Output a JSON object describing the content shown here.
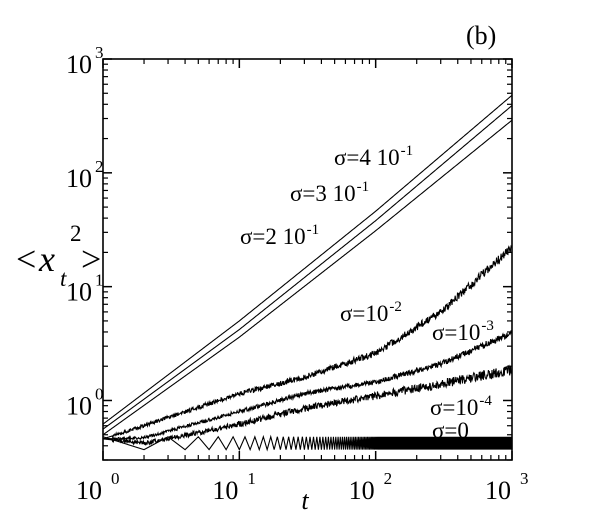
{
  "chart_data": {
    "type": "line",
    "panel_label": "(b)",
    "xlabel": "t",
    "ylabel": "<x_t^2>",
    "x_scale": "log",
    "y_scale": "log",
    "xlim": [
      1,
      1000
    ],
    "ylim": [
      0.3,
      1000
    ],
    "grid": false,
    "x_ticks": [
      {
        "value": 1,
        "base": "10",
        "exp": "0"
      },
      {
        "value": 10,
        "base": "10",
        "exp": "1"
      },
      {
        "value": 100,
        "base": "10",
        "exp": "2"
      },
      {
        "value": 1000,
        "base": "10",
        "exp": "3"
      }
    ],
    "y_ticks": [
      {
        "value": 1,
        "base": "10",
        "exp": "0"
      },
      {
        "value": 10,
        "base": "10",
        "exp": "1"
      },
      {
        "value": 100,
        "base": "10",
        "exp": "2"
      },
      {
        "value": 1000,
        "base": "10",
        "exp": "3"
      }
    ],
    "series": [
      {
        "name": "σ=4 10^-1",
        "label_main": "σ=4 10",
        "label_exp": "-1",
        "noise": 0.0,
        "oscillating": false,
        "x": [
          1,
          10,
          100,
          1000
        ],
        "y": [
          0.62,
          5.0,
          46,
          480
        ]
      },
      {
        "name": "σ=3 10^-1",
        "label_main": "σ=3 10",
        "label_exp": "-1",
        "noise": 0.0,
        "oscillating": false,
        "x": [
          1,
          10,
          100,
          1000
        ],
        "y": [
          0.56,
          4.2,
          38,
          390
        ]
      },
      {
        "name": "σ=2 10^-1",
        "label_main": "σ=2 10",
        "label_exp": "-1",
        "noise": 0.0,
        "oscillating": false,
        "x": [
          1,
          10,
          100,
          1000
        ],
        "y": [
          0.5,
          3.6,
          31,
          290
        ]
      },
      {
        "name": "σ=10^-2",
        "label_main": "σ=10",
        "label_exp": "-2",
        "noise": 0.025,
        "oscillating": false,
        "x": [
          1,
          2,
          10,
          30,
          100,
          300,
          1000
        ],
        "y": [
          0.46,
          0.6,
          1.15,
          1.6,
          2.6,
          6.0,
          22
        ]
      },
      {
        "name": "σ=10^-3",
        "label_main": "σ=10",
        "label_exp": "-3",
        "noise": 0.02,
        "oscillating": false,
        "x": [
          1,
          2,
          10,
          30,
          100,
          300,
          1000
        ],
        "y": [
          0.46,
          0.47,
          0.8,
          1.15,
          1.45,
          2.1,
          3.9
        ]
      },
      {
        "name": "σ=10^-4",
        "label_main": "σ=10",
        "label_exp": "-4",
        "noise": 0.03,
        "oscillating": false,
        "x": [
          1,
          2,
          5,
          10,
          30,
          100,
          300,
          1000
        ],
        "y": [
          0.46,
          0.42,
          0.52,
          0.62,
          0.85,
          1.1,
          1.4,
          1.85
        ]
      },
      {
        "name": "σ=0",
        "label_main": "σ=0",
        "label_exp": "",
        "noise": 0.0,
        "oscillating": true,
        "x": [
          1,
          1000
        ],
        "y_low": 0.37,
        "y_high": 0.48
      }
    ]
  }
}
